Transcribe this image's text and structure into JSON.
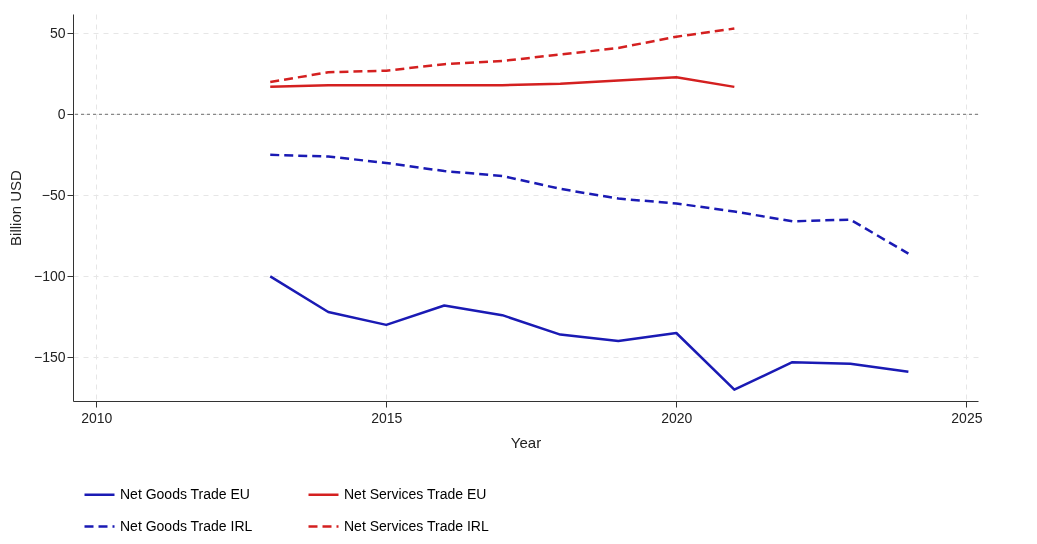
{
  "chart_data": {
    "type": "line",
    "xlabel": "Year",
    "ylabel": "Billion USD",
    "x": [
      2013,
      2014,
      2015,
      2016,
      2017,
      2018,
      2019,
      2020,
      2021,
      2022,
      2023,
      2024
    ],
    "series": [
      {
        "name": "Net Goods Trade EU",
        "color": "#1a1ab4",
        "line_style": "solid",
        "values": [
          -100,
          -122,
          -130,
          -118,
          -124,
          -136,
          -140,
          -135,
          -170,
          -153,
          -154,
          -159
        ]
      },
      {
        "name": "Net Services Trade EU",
        "color": "#d42020",
        "line_style": "solid",
        "values": [
          17,
          18,
          18,
          18,
          18,
          19,
          21,
          23,
          17,
          null,
          null,
          null
        ]
      },
      {
        "name": "Net Goods Trade IRL",
        "color": "#1a1ab4",
        "line_style": "dashed",
        "values": [
          -25,
          -26,
          -30,
          -35,
          -38,
          -46,
          -52,
          -55,
          -60,
          -66,
          -65,
          -86
        ]
      },
      {
        "name": "Net Services Trade IRL",
        "color": "#d42020",
        "line_style": "dashed",
        "values": [
          20,
          26,
          27,
          31,
          33,
          37,
          41,
          48,
          53,
          null,
          null,
          null
        ]
      }
    ],
    "xlim": [
      2009.6,
      2025.2
    ],
    "xticks": [
      2010,
      2015,
      2020,
      2025
    ],
    "ylim": [
      -177,
      62
    ],
    "yticks": [
      -150,
      -100,
      -50,
      0,
      50
    ],
    "ref_lines": [
      {
        "axis": "y",
        "value": 0,
        "color": "#888888",
        "line_style": "dotted"
      }
    ],
    "grid": true,
    "legend": "bottom",
    "marker": "none"
  }
}
